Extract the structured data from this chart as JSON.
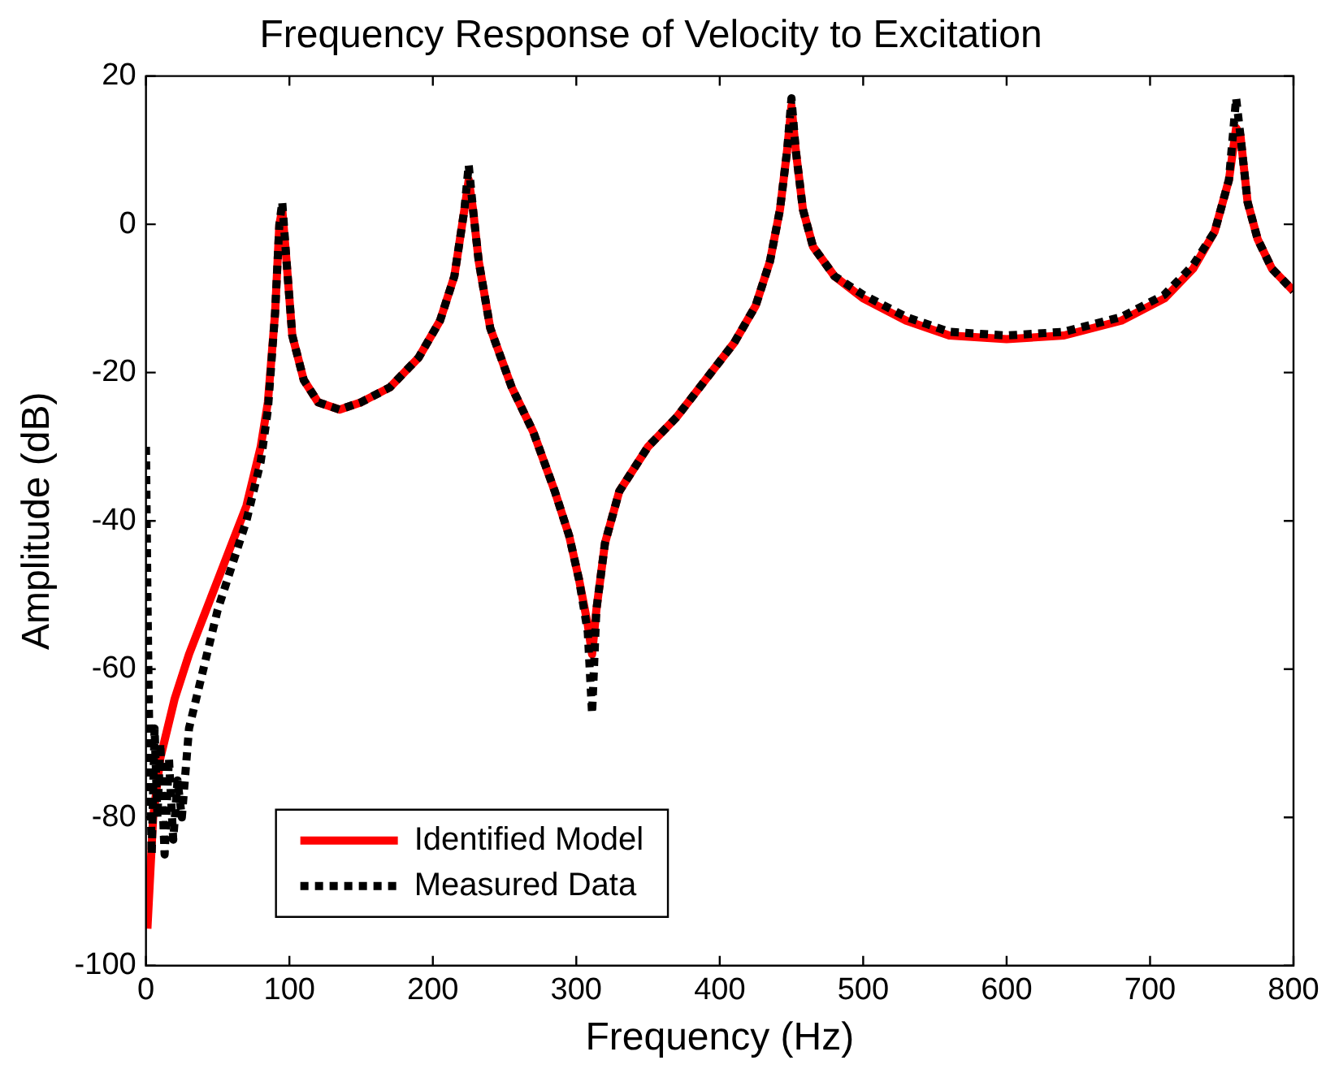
{
  "chart_data": {
    "type": "line",
    "title": "Frequency Response of Velocity to Excitation",
    "xlabel": "Frequency (Hz)",
    "ylabel": "Amplitude (dB)",
    "xlim": [
      0,
      800
    ],
    "xticks": [
      0,
      100,
      200,
      300,
      400,
      500,
      600,
      700,
      800
    ],
    "ylim": [
      -100,
      20
    ],
    "yticks": [
      -100,
      -80,
      -60,
      -40,
      -20,
      0,
      20
    ],
    "grid": false,
    "legend": "bottom left",
    "marker": "none",
    "series": [
      {
        "name": "Identified Model",
        "color": "#ff0000",
        "line_style": "solid",
        "x": [
          1,
          5,
          10,
          20,
          30,
          40,
          50,
          60,
          70,
          80,
          85,
          90,
          93,
          95,
          98,
          102,
          110,
          120,
          135,
          150,
          170,
          190,
          205,
          215,
          222,
          225,
          228,
          232,
          240,
          255,
          270,
          285,
          295,
          302,
          308,
          311,
          314,
          320,
          330,
          350,
          370,
          390,
          410,
          425,
          435,
          442,
          447,
          450,
          453,
          458,
          465,
          480,
          500,
          530,
          560,
          600,
          640,
          680,
          710,
          730,
          745,
          755,
          760,
          763,
          768,
          775,
          785,
          800
        ],
        "values": [
          -95,
          -80,
          -72,
          -64,
          -58,
          -53,
          -48,
          -43,
          -38,
          -30,
          -24,
          -12,
          0,
          2,
          -5,
          -15,
          -21,
          -24,
          -25,
          -24,
          -22,
          -18,
          -13,
          -7,
          2,
          6,
          2,
          -5,
          -14,
          -22,
          -28,
          -36,
          -42,
          -48,
          -54,
          -58,
          -52,
          -43,
          -36,
          -30,
          -26,
          -21,
          -16,
          -11,
          -5,
          2,
          10,
          16,
          10,
          2,
          -3,
          -7,
          -10,
          -13,
          -15,
          -15.5,
          -15,
          -13,
          -10,
          -6,
          -1,
          6,
          13,
          12,
          3,
          -2,
          -6,
          -9
        ]
      },
      {
        "name": "Measured Data",
        "color": "#000000",
        "line_style": "dotted",
        "x": [
          0,
          1,
          2,
          4,
          6,
          8,
          10,
          13,
          16,
          19,
          22,
          25,
          30,
          40,
          50,
          60,
          70,
          80,
          85,
          90,
          93,
          95,
          98,
          102,
          110,
          120,
          135,
          150,
          170,
          190,
          205,
          215,
          222,
          225,
          228,
          232,
          240,
          255,
          270,
          285,
          295,
          302,
          308,
          311,
          314,
          320,
          330,
          350,
          370,
          390,
          410,
          425,
          435,
          442,
          447,
          450,
          453,
          458,
          465,
          480,
          500,
          530,
          560,
          600,
          640,
          680,
          710,
          730,
          745,
          755,
          760,
          763,
          768,
          775,
          785,
          800
        ],
        "values": [
          -30,
          -50,
          -65,
          -85,
          -68,
          -80,
          -70,
          -85,
          -72,
          -83,
          -75,
          -80,
          -68,
          -60,
          -52,
          -46,
          -40,
          -32,
          -25,
          -12,
          0,
          3,
          -5,
          -15,
          -21,
          -24,
          -25,
          -24,
          -22,
          -18,
          -13,
          -7,
          2,
          8,
          2,
          -5,
          -14,
          -22,
          -28,
          -36,
          -42,
          -48,
          -55,
          -66,
          -52,
          -43,
          -36,
          -30,
          -26,
          -21,
          -16,
          -11,
          -5,
          2,
          10,
          17,
          10,
          2,
          -3,
          -7,
          -9.5,
          -12.5,
          -14.5,
          -15,
          -14.5,
          -12.5,
          -9.5,
          -5.5,
          -1,
          6,
          17,
          12,
          3,
          -2,
          -6,
          -9
        ]
      }
    ]
  }
}
